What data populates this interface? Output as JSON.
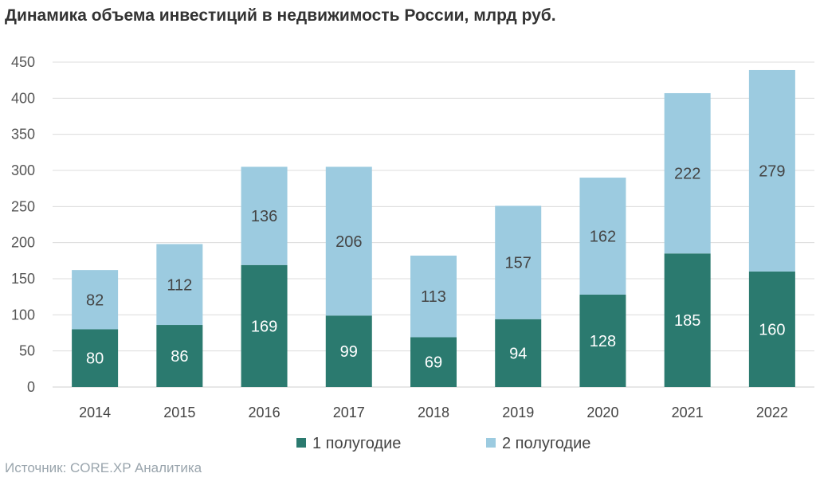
{
  "chart_data": {
    "type": "bar",
    "stacked": true,
    "title": "Динамика объема инвестиций в недвижимость России, млрд руб.",
    "source": "Источник: CORE.XP Аналитика",
    "categories": [
      "2014",
      "2015",
      "2016",
      "2017",
      "2018",
      "2019",
      "2020",
      "2021",
      "2022"
    ],
    "series": [
      {
        "name": "1 полугодие",
        "color": "#2b7a6f",
        "label_color": "#ffffff",
        "values": [
          80,
          86,
          169,
          99,
          69,
          94,
          128,
          185,
          160
        ]
      },
      {
        "name": "2 полугодие",
        "color": "#9ccbe0",
        "label_color": "#444444",
        "values": [
          82,
          112,
          136,
          206,
          113,
          157,
          162,
          222,
          279
        ]
      }
    ],
    "ylim": [
      0,
      450
    ],
    "yticks": [
      "0",
      "50",
      "100",
      "150",
      "200",
      "250",
      "300",
      "350",
      "400",
      "450"
    ],
    "grid": true,
    "legend_position": "bottom"
  }
}
